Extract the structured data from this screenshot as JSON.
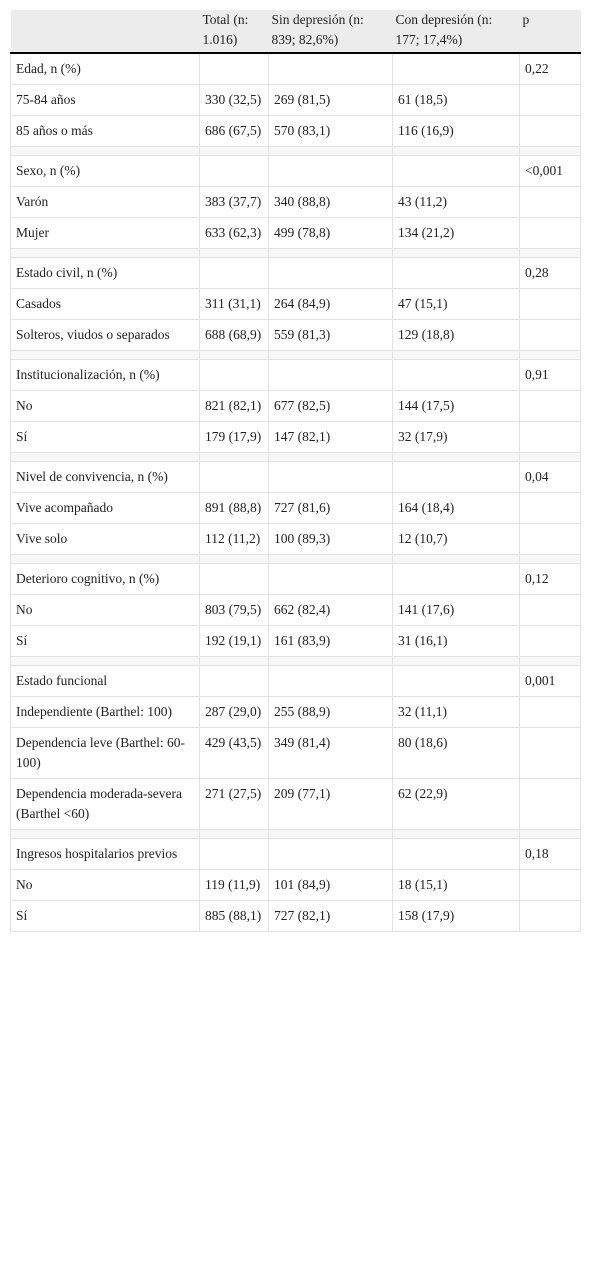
{
  "table": {
    "columns": [
      "Total (n: 1.016)",
      "Sin depresión (n: 839; 82,6%)",
      "Con depresión (n: 177; 17,4%)",
      "p"
    ],
    "groups": [
      {
        "label": "Edad, n (%)",
        "p": "0,22",
        "rows": [
          [
            "75-84 años",
            "330 (32,5)",
            "269 (81,5)",
            "61 (18,5)"
          ],
          [
            "85 años o más",
            "686 (67,5)",
            "570 (83,1)",
            "116 (16,9)"
          ]
        ]
      },
      {
        "label": "Sexo, n (%)",
        "p": "<0,001",
        "rows": [
          [
            "Varón",
            "383 (37,7)",
            "340 (88,8)",
            "43 (11,2)"
          ],
          [
            "Mujer",
            "633 (62,3)",
            "499 (78,8)",
            "134 (21,2)"
          ]
        ]
      },
      {
        "label": "Estado civil, n (%)",
        "p": "0,28",
        "rows": [
          [
            "Casados",
            "311 (31,1)",
            "264 (84,9)",
            "47 (15,1)"
          ],
          [
            "Solteros, viudos o separados",
            "688 (68,9)",
            "559 (81,3)",
            "129 (18,8)"
          ]
        ]
      },
      {
        "label": "Institucionalización, n (%)",
        "p": "0,91",
        "rows": [
          [
            "No",
            "821 (82,1)",
            "677 (82,5)",
            "144 (17,5)"
          ],
          [
            "Sí",
            "179 (17,9)",
            "147 (82,1)",
            "32 (17,9)"
          ]
        ]
      },
      {
        "label": "Nivel de convivencia, n (%)",
        "p": "0,04",
        "rows": [
          [
            "Vive acompañado",
            "891 (88,8)",
            "727 (81,6)",
            "164 (18,4)"
          ],
          [
            "Vive solo",
            "112 (11,2)",
            "100 (89,3)",
            "12 (10,7)"
          ]
        ]
      },
      {
        "label": "Deterioro cognitivo, n (%)",
        "p": "0,12",
        "rows": [
          [
            "No",
            "803 (79,5)",
            "662 (82,4)",
            "141 (17,6)"
          ],
          [
            "Sí",
            "192 (19,1)",
            "161 (83,9)",
            "31 (16,1)"
          ]
        ]
      },
      {
        "label": "Estado funcional",
        "p": "0,001",
        "rows": [
          [
            "Independiente (Barthel: 100)",
            "287 (29,0)",
            "255 (88,9)",
            "32 (11,1)"
          ],
          [
            "Dependencia leve (Barthel: 60-100)",
            "429 (43,5)",
            "349 (81,4)",
            "80 (18,6)"
          ],
          [
            "Dependencia moderada-severa (Barthel <60)",
            "271 (27,5)",
            "209 (77,1)",
            "62 (22,9)"
          ]
        ]
      },
      {
        "label": "Ingresos hospitalarios previos",
        "p": "0,18",
        "rows": [
          [
            "No",
            "119 (11,9)",
            "101 (84,9)",
            "18 (15,1)"
          ],
          [
            "Sí",
            "885 (88,1)",
            "727 (82,1)",
            "158 (17,9)"
          ]
        ]
      }
    ]
  }
}
